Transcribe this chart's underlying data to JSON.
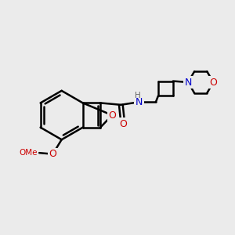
{
  "bg_color": "#ebebeb",
  "bond_color": "#000000",
  "atom_colors": {
    "O": "#cc0000",
    "N": "#0000cc",
    "H": "#666666",
    "C": "#000000"
  },
  "bond_width": 1.8,
  "figsize": [
    3.0,
    3.0
  ],
  "dpi": 100
}
